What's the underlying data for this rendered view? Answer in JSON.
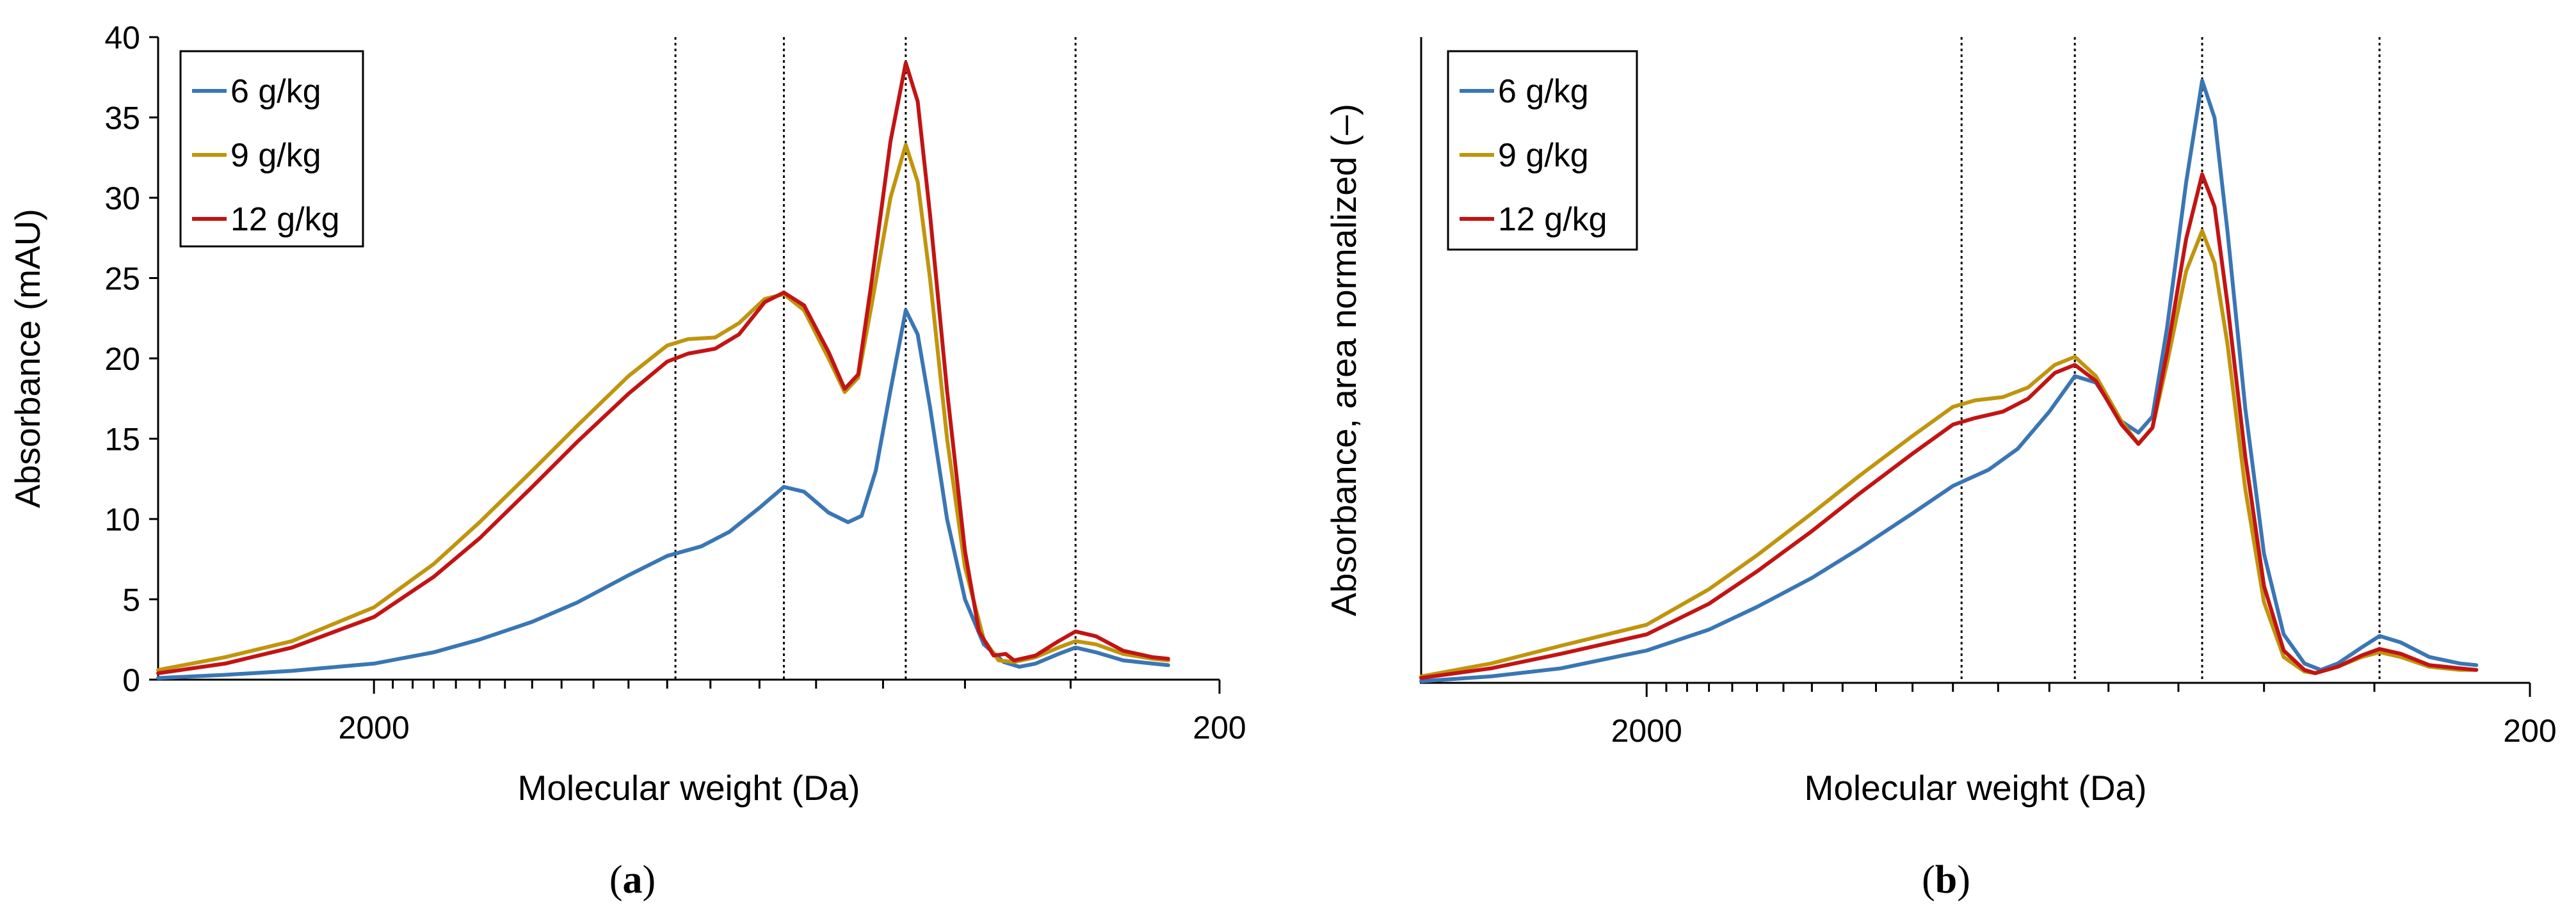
{
  "chart_data": [
    {
      "panel_label": "a",
      "type": "line",
      "xlabel": "Molecular weight (Da)",
      "ylabel": "Absorbance (mAU)",
      "x_scale": "log",
      "x_reversed": true,
      "xlim": [
        3600,
        200
      ],
      "ylim": [
        0,
        40
      ],
      "yticks": [
        0,
        5,
        10,
        15,
        20,
        25,
        30,
        35,
        40
      ],
      "xtick_labels": [
        {
          "value": 2000,
          "label": "2000"
        },
        {
          "value": 200,
          "label": "200"
        }
      ],
      "x_minor_ticks": [
        1900,
        1800,
        1700,
        1600,
        1500,
        1400,
        1300,
        1200,
        1100,
        1000,
        900,
        800,
        700,
        600,
        500,
        400,
        300
      ],
      "reference_lines_x": [
        880,
        655,
        470,
        296
      ],
      "grid": false,
      "legend_position": "top-left",
      "series": [
        {
          "name": "6 g/kg",
          "color": "#3a76b4",
          "points": [
            [
              3600,
              0.1
            ],
            [
              3000,
              0.3
            ],
            [
              2500,
              0.55
            ],
            [
              2000,
              1.0
            ],
            [
              1700,
              1.7
            ],
            [
              1500,
              2.5
            ],
            [
              1300,
              3.6
            ],
            [
              1150,
              4.8
            ],
            [
              1000,
              6.5
            ],
            [
              900,
              7.7
            ],
            [
              820,
              8.3
            ],
            [
              760,
              9.2
            ],
            [
              700,
              10.7
            ],
            [
              655,
              12.0
            ],
            [
              620,
              11.7
            ],
            [
              580,
              10.4
            ],
            [
              550,
              9.8
            ],
            [
              530,
              10.2
            ],
            [
              510,
              13.0
            ],
            [
              490,
              18.0
            ],
            [
              470,
              23.0
            ],
            [
              455,
              21.5
            ],
            [
              440,
              17.0
            ],
            [
              420,
              10.0
            ],
            [
              400,
              5.0
            ],
            [
              380,
              2.2
            ],
            [
              360,
              1.1
            ],
            [
              345,
              0.8
            ],
            [
              330,
              1.0
            ],
            [
              310,
              1.6
            ],
            [
              296,
              2.0
            ],
            [
              280,
              1.7
            ],
            [
              260,
              1.2
            ],
            [
              240,
              1.0
            ],
            [
              230,
              0.9
            ]
          ]
        },
        {
          "name": "9 g/kg",
          "color": "#c0950e",
          "points": [
            [
              3600,
              0.6
            ],
            [
              3000,
              1.4
            ],
            [
              2500,
              2.4
            ],
            [
              2000,
              4.5
            ],
            [
              1700,
              7.2
            ],
            [
              1500,
              9.8
            ],
            [
              1300,
              13.0
            ],
            [
              1150,
              15.8
            ],
            [
              1000,
              18.9
            ],
            [
              900,
              20.8
            ],
            [
              850,
              21.2
            ],
            [
              790,
              21.3
            ],
            [
              740,
              22.2
            ],
            [
              690,
              23.7
            ],
            [
              655,
              24.0
            ],
            [
              620,
              23.0
            ],
            [
              580,
              20.0
            ],
            [
              555,
              17.9
            ],
            [
              535,
              18.8
            ],
            [
              515,
              23.5
            ],
            [
              490,
              30.0
            ],
            [
              470,
              33.3
            ],
            [
              455,
              31.0
            ],
            [
              440,
              25.0
            ],
            [
              420,
              15.0
            ],
            [
              400,
              7.0
            ],
            [
              380,
              2.5
            ],
            [
              365,
              1.2
            ],
            [
              350,
              1.1
            ],
            [
              330,
              1.4
            ],
            [
              310,
              2.0
            ],
            [
              296,
              2.4
            ],
            [
              280,
              2.2
            ],
            [
              260,
              1.6
            ],
            [
              240,
              1.3
            ],
            [
              230,
              1.2
            ]
          ]
        },
        {
          "name": "12 g/kg",
          "color": "#c21414",
          "points": [
            [
              3600,
              0.4
            ],
            [
              3000,
              1.0
            ],
            [
              2500,
              2.0
            ],
            [
              2000,
              3.9
            ],
            [
              1700,
              6.4
            ],
            [
              1500,
              8.8
            ],
            [
              1300,
              12.0
            ],
            [
              1150,
              14.8
            ],
            [
              1000,
              17.8
            ],
            [
              900,
              19.8
            ],
            [
              850,
              20.3
            ],
            [
              790,
              20.6
            ],
            [
              740,
              21.5
            ],
            [
              690,
              23.5
            ],
            [
              655,
              24.1
            ],
            [
              620,
              23.3
            ],
            [
              580,
              20.4
            ],
            [
              555,
              18.1
            ],
            [
              535,
              19.0
            ],
            [
              515,
              25.0
            ],
            [
              490,
              33.5
            ],
            [
              470,
              38.4
            ],
            [
              455,
              36.0
            ],
            [
              440,
              29.0
            ],
            [
              420,
              18.0
            ],
            [
              400,
              8.0
            ],
            [
              385,
              3.0
            ],
            [
              370,
              1.5
            ],
            [
              358,
              1.6
            ],
            [
              350,
              1.2
            ],
            [
              330,
              1.5
            ],
            [
              310,
              2.4
            ],
            [
              296,
              3.0
            ],
            [
              280,
              2.7
            ],
            [
              260,
              1.8
            ],
            [
              240,
              1.4
            ],
            [
              230,
              1.3
            ]
          ]
        }
      ]
    },
    {
      "panel_label": "b",
      "type": "line",
      "xlabel": "Molecular weight (Da)",
      "ylabel": "Absorbance, area normalized (–)",
      "x_scale": "log",
      "x_reversed": true,
      "xlim": [
        3600,
        200
      ],
      "ylim": [
        0,
        40
      ],
      "yticks": [],
      "xtick_labels": [
        {
          "value": 2000,
          "label": "2000"
        },
        {
          "value": 200,
          "label": "200"
        }
      ],
      "x_minor_ticks": [
        1900,
        1800,
        1700,
        1600,
        1500,
        1400,
        1300,
        1200,
        1100,
        1000,
        900,
        800,
        700,
        600,
        500,
        400,
        300
      ],
      "reference_lines_x": [
        880,
        655,
        470,
        296
      ],
      "grid": false,
      "legend_position": "top-left",
      "series": [
        {
          "name": "6 g/kg",
          "color": "#3a76b4",
          "points": [
            [
              3600,
              0.1
            ],
            [
              3000,
              0.4
            ],
            [
              2500,
              0.9
            ],
            [
              2000,
              2.0
            ],
            [
              1700,
              3.3
            ],
            [
              1500,
              4.7
            ],
            [
              1300,
              6.5
            ],
            [
              1150,
              8.3
            ],
            [
              1000,
              10.5
            ],
            [
              900,
              12.2
            ],
            [
              820,
              13.2
            ],
            [
              760,
              14.5
            ],
            [
              700,
              16.8
            ],
            [
              655,
              19.0
            ],
            [
              620,
              18.6
            ],
            [
              580,
              16.2
            ],
            [
              555,
              15.5
            ],
            [
              535,
              16.5
            ],
            [
              515,
              22.0
            ],
            [
              490,
              31.0
            ],
            [
              470,
              37.3
            ],
            [
              455,
              35.0
            ],
            [
              440,
              28.0
            ],
            [
              420,
              17.0
            ],
            [
              400,
              8.0
            ],
            [
              380,
              3.0
            ],
            [
              360,
              1.2
            ],
            [
              345,
              0.8
            ],
            [
              330,
              1.2
            ],
            [
              310,
              2.2
            ],
            [
              296,
              2.9
            ],
            [
              280,
              2.5
            ],
            [
              260,
              1.6
            ],
            [
              240,
              1.2
            ],
            [
              230,
              1.1
            ]
          ]
        },
        {
          "name": "9 g/kg",
          "color": "#c0950e",
          "points": [
            [
              3600,
              0.4
            ],
            [
              3000,
              1.2
            ],
            [
              2500,
              2.3
            ],
            [
              2000,
              3.6
            ],
            [
              1700,
              5.8
            ],
            [
              1500,
              7.9
            ],
            [
              1300,
              10.5
            ],
            [
              1150,
              12.8
            ],
            [
              1000,
              15.3
            ],
            [
              900,
              17.1
            ],
            [
              850,
              17.5
            ],
            [
              790,
              17.7
            ],
            [
              740,
              18.3
            ],
            [
              690,
              19.7
            ],
            [
              655,
              20.2
            ],
            [
              620,
              19.0
            ],
            [
              580,
              16.2
            ],
            [
              555,
              14.8
            ],
            [
              535,
              15.8
            ],
            [
              515,
              19.8
            ],
            [
              490,
              25.5
            ],
            [
              470,
              28.0
            ],
            [
              455,
              26.0
            ],
            [
              440,
              21.0
            ],
            [
              420,
              12.0
            ],
            [
              400,
              5.0
            ],
            [
              380,
              1.6
            ],
            [
              360,
              0.7
            ],
            [
              350,
              0.6
            ],
            [
              330,
              1.0
            ],
            [
              310,
              1.6
            ],
            [
              296,
              1.9
            ],
            [
              280,
              1.6
            ],
            [
              260,
              1.0
            ],
            [
              240,
              0.8
            ],
            [
              230,
              0.8
            ]
          ]
        },
        {
          "name": "12 g/kg",
          "color": "#c21414",
          "points": [
            [
              3600,
              0.3
            ],
            [
              3000,
              0.9
            ],
            [
              2500,
              1.8
            ],
            [
              2000,
              3.0
            ],
            [
              1700,
              4.9
            ],
            [
              1500,
              6.9
            ],
            [
              1300,
              9.4
            ],
            [
              1150,
              11.7
            ],
            [
              1000,
              14.2
            ],
            [
              900,
              16.0
            ],
            [
              850,
              16.4
            ],
            [
              790,
              16.8
            ],
            [
              740,
              17.6
            ],
            [
              690,
              19.2
            ],
            [
              655,
              19.7
            ],
            [
              620,
              18.7
            ],
            [
              580,
              16.0
            ],
            [
              555,
              14.8
            ],
            [
              535,
              15.8
            ],
            [
              515,
              20.5
            ],
            [
              490,
              27.5
            ],
            [
              470,
              31.5
            ],
            [
              455,
              29.5
            ],
            [
              440,
              23.5
            ],
            [
              420,
              14.0
            ],
            [
              400,
              6.0
            ],
            [
              380,
              2.0
            ],
            [
              360,
              0.8
            ],
            [
              350,
              0.6
            ],
            [
              330,
              1.0
            ],
            [
              310,
              1.7
            ],
            [
              296,
              2.1
            ],
            [
              280,
              1.8
            ],
            [
              260,
              1.1
            ],
            [
              240,
              0.9
            ],
            [
              230,
              0.8
            ]
          ]
        }
      ]
    }
  ]
}
